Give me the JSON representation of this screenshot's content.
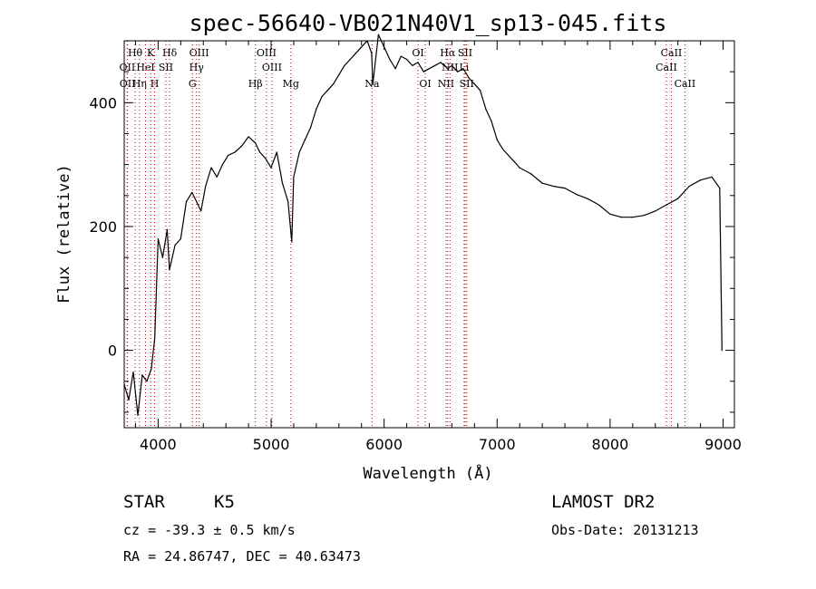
{
  "chart_data": {
    "type": "line",
    "title": "spec-56640-VB021N40V1_sp13-045.fits",
    "xlabel": "Wavelength (Å)",
    "ylabel": "Flux (relative)",
    "xlim": [
      3700,
      9100
    ],
    "ylim": [
      -125,
      500
    ],
    "x_ticks": [
      4000,
      5000,
      6000,
      7000,
      8000,
      9000
    ],
    "y_ticks": [
      0,
      200,
      400
    ],
    "grid": false,
    "series": [
      {
        "color": "#000000",
        "x": [
          3700,
          3740,
          3780,
          3820,
          3860,
          3900,
          3940,
          3970,
          4000,
          4040,
          4080,
          4100,
          4150,
          4200,
          4250,
          4300,
          4340,
          4380,
          4420,
          4470,
          4520,
          4570,
          4620,
          4680,
          4740,
          4800,
          4860,
          4900,
          4950,
          5000,
          5050,
          5100,
          5150,
          5183,
          5200,
          5250,
          5300,
          5350,
          5400,
          5450,
          5500,
          5550,
          5600,
          5650,
          5700,
          5750,
          5800,
          5850,
          5890,
          5900,
          5950,
          6000,
          6050,
          6100,
          6150,
          6200,
          6250,
          6300,
          6350,
          6400,
          6450,
          6500,
          6563,
          6600,
          6650,
          6700,
          6750,
          6800,
          6850,
          6900,
          6950,
          7000,
          7050,
          7100,
          7150,
          7200,
          7300,
          7400,
          7500,
          7600,
          7700,
          7800,
          7900,
          8000,
          8100,
          8200,
          8300,
          8400,
          8500,
          8600,
          8700,
          8800,
          8900,
          8970,
          8990
        ],
        "y": [
          -55,
          -80,
          -35,
          -105,
          -40,
          -50,
          -30,
          20,
          180,
          150,
          195,
          130,
          170,
          180,
          240,
          255,
          240,
          225,
          265,
          295,
          280,
          300,
          315,
          320,
          330,
          345,
          335,
          320,
          310,
          295,
          320,
          270,
          240,
          175,
          280,
          320,
          340,
          360,
          390,
          410,
          420,
          430,
          445,
          460,
          470,
          480,
          490,
          500,
          480,
          430,
          510,
          490,
          470,
          455,
          475,
          470,
          460,
          465,
          450,
          455,
          460,
          465,
          455,
          460,
          450,
          455,
          440,
          430,
          420,
          390,
          370,
          340,
          325,
          315,
          305,
          295,
          285,
          270,
          265,
          262,
          252,
          245,
          235,
          220,
          215,
          215,
          218,
          225,
          235,
          245,
          265,
          275,
          280,
          262,
          0
        ]
      }
    ],
    "line_markers": [
      {
        "label": "Hθ",
        "x": 3797,
        "row": 1
      },
      {
        "label": "K",
        "x": 3934,
        "row": 1
      },
      {
        "label": "Hδ",
        "x": 4102,
        "row": 1
      },
      {
        "label": "OIII",
        "x": 4363,
        "row": 1
      },
      {
        "label": "OIII",
        "x": 4959,
        "row": 1
      },
      {
        "label": "OI",
        "x": 6300,
        "row": 1
      },
      {
        "label": "Hα",
        "x": 6563,
        "row": 1
      },
      {
        "label": "SII",
        "x": 6717,
        "row": 1
      },
      {
        "label": "CaII",
        "x": 8542,
        "row": 1
      },
      {
        "label": "OII",
        "x": 3727,
        "row": 2
      },
      {
        "label": "HeI",
        "x": 3889,
        "row": 2
      },
      {
        "label": "SII",
        "x": 4069,
        "row": 2
      },
      {
        "label": "Hγ",
        "x": 4340,
        "row": 2
      },
      {
        "label": "OIII",
        "x": 5007,
        "row": 2
      },
      {
        "label": "NII",
        "x": 6583,
        "row": 2
      },
      {
        "label": "Li",
        "x": 6708,
        "row": 2
      },
      {
        "label": "CaII",
        "x": 8498,
        "row": 2
      },
      {
        "label": "OII",
        "x": 3729,
        "row": 3
      },
      {
        "label": "Hη",
        "x": 3835,
        "row": 3
      },
      {
        "label": "H",
        "x": 3969,
        "row": 3
      },
      {
        "label": "G",
        "x": 4304,
        "row": 3
      },
      {
        "label": "Hβ",
        "x": 4861,
        "row": 3
      },
      {
        "label": "Mg",
        "x": 5175,
        "row": 3
      },
      {
        "label": "Na",
        "x": 5893,
        "row": 3
      },
      {
        "label": "OI",
        "x": 6364,
        "row": 3
      },
      {
        "label": "NII",
        "x": 6548,
        "row": 3
      },
      {
        "label": "SII",
        "x": 6731,
        "row": 3
      },
      {
        "label": "CaII",
        "x": 8662,
        "row": 3
      }
    ]
  },
  "info": {
    "class": "STAR",
    "subclass": "K5",
    "survey": "LAMOST DR2",
    "cz": "cz = -39.3 ± 0.5 km/s",
    "obs_date": "Obs-Date: 20131213",
    "radec": "RA =  24.86747, DEC =  40.63473"
  }
}
